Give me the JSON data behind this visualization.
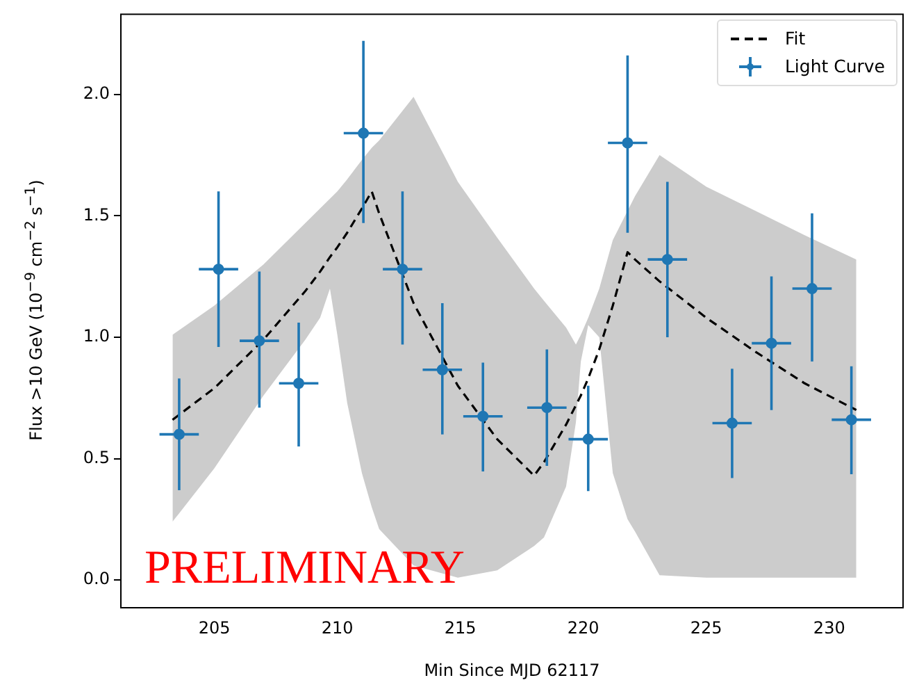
{
  "chart_data": {
    "type": "line",
    "xlabel": "Min Since MJD 62117",
    "ylabel": "Flux >10 GeV (10$^{−9}$ cm$^{−2}$ s$^{−1}$)",
    "xlim": [
      201.2,
      233.0
    ],
    "ylim": [
      -0.114,
      2.33
    ],
    "xticks": [
      205,
      210,
      215,
      220,
      225,
      230
    ],
    "yticks": [
      {
        "value": 0,
        "label": "0.0"
      },
      {
        "value": 0.5,
        "label": "0.5"
      },
      {
        "value": 1,
        "label": "1.0"
      },
      {
        "value": 1.5,
        "label": "1.5"
      },
      {
        "value": 2,
        "label": "2.0"
      }
    ],
    "grid": false,
    "legend": "top right",
    "annotations": [
      "PRELIMINARY"
    ],
    "series": [
      {
        "name": "Fit",
        "color": "#000000",
        "line_style": "dashed",
        "marker": "none",
        "x": [
          203.3,
          205,
          207,
          208.7,
          209.3,
          209.7,
          210.0,
          210.4,
          211.0,
          211.4,
          211.7,
          213.1,
          214.9,
          216.5,
          218,
          218.4,
          219.3,
          219.7,
          219.9,
          220.2,
          220.65,
          221.2,
          221.8,
          222.1,
          223.1,
          225,
          227,
          229,
          231.1
        ],
        "values": [
          0.66,
          0.79,
          0.99,
          1.19,
          1.27,
          1.33,
          1.37,
          1.43,
          1.53,
          1.6,
          1.51,
          1.14,
          0.8,
          0.58,
          0.43,
          0.485,
          0.64,
          0.72,
          0.76,
          0.83,
          0.95,
          1.13,
          1.35,
          1.32,
          1.23,
          1.08,
          0.94,
          0.81,
          0.7
        ],
        "upper": [
          1.01,
          1.13,
          1.3,
          1.47,
          1.53,
          1.57,
          1.6,
          1.65,
          1.73,
          1.78,
          1.81,
          1.99,
          1.64,
          1.41,
          1.2,
          1.15,
          1.04,
          0.97,
          1.01,
          1.08,
          1.2,
          1.4,
          1.52,
          1.58,
          1.75,
          1.62,
          1.52,
          1.42,
          1.32
        ],
        "lower": [
          0.24,
          0.46,
          0.76,
          0.99,
          1.08,
          1.2,
          1.01,
          0.73,
          0.44,
          0.3,
          0.21,
          0.06,
          0.01,
          0.04,
          0.14,
          0.175,
          0.385,
          0.65,
          0.9,
          1.05,
          1.0,
          0.44,
          0.25,
          0.2,
          0.02,
          0.01,
          0.01,
          0.01,
          0.01
        ]
      },
      {
        "name": "Light Curve",
        "type": "scatter",
        "color": "#1f77b4",
        "marker": "circle",
        "x": [
          203.57,
          205.17,
          206.83,
          208.43,
          211.06,
          212.65,
          214.27,
          215.92,
          218.52,
          220.2,
          221.8,
          223.42,
          226.05,
          227.65,
          229.3,
          230.9
        ],
        "values": [
          0.6,
          1.28,
          0.985,
          0.81,
          1.84,
          1.28,
          0.866,
          0.674,
          0.71,
          0.58,
          1.8,
          1.32,
          0.646,
          0.975,
          1.2,
          0.66
        ],
        "errors": [
          [
            0.37,
            0.83
          ],
          [
            0.96,
            1.6
          ],
          [
            0.71,
            1.27
          ],
          [
            0.55,
            1.06
          ],
          [
            1.47,
            2.22
          ],
          [
            0.97,
            1.6
          ],
          [
            0.6,
            1.14
          ],
          [
            0.447,
            0.895
          ],
          [
            0.47,
            0.95
          ],
          [
            0.366,
            0.8
          ],
          [
            1.43,
            2.16
          ],
          [
            1.0,
            1.64
          ],
          [
            0.42,
            0.87
          ],
          [
            0.7,
            1.25
          ],
          [
            0.9,
            1.51
          ],
          [
            0.436,
            0.88
          ]
        ],
        "xerrors": [
          0.8,
          0.8,
          0.8,
          0.8,
          0.8,
          0.8,
          0.8,
          0.8,
          0.8,
          0.8,
          0.8,
          0.8,
          0.8,
          0.8,
          0.8,
          0.8
        ]
      }
    ]
  }
}
